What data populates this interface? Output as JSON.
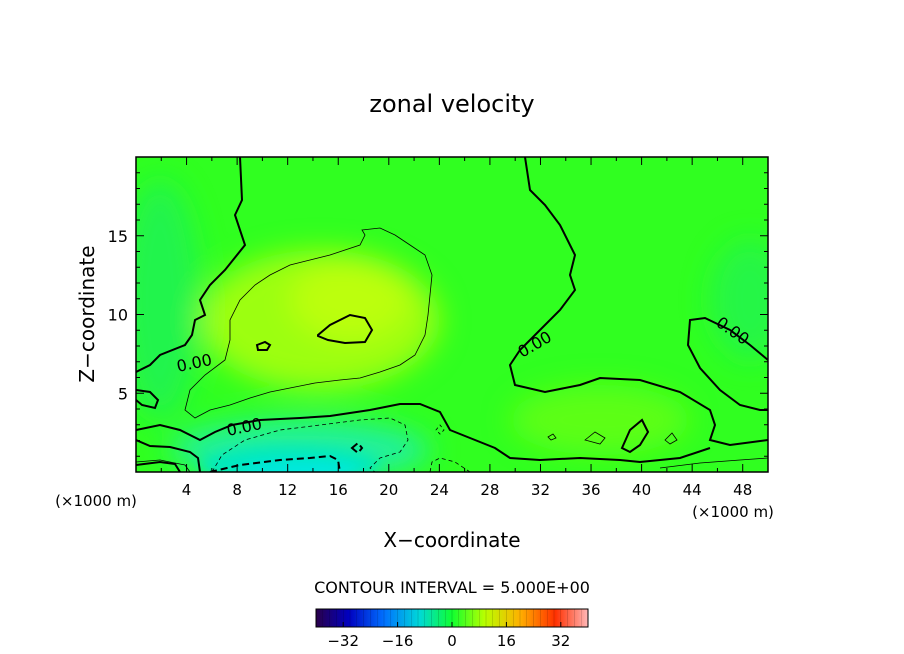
{
  "chart_data": {
    "type": "heatmap",
    "title": "zonal velocity",
    "xlabel": "X−coordinate",
    "ylabel": "Z−coordinate",
    "x_unit_left": "(×1000 m)",
    "x_unit_right": "(×1000 m)",
    "xlim": [
      0,
      50
    ],
    "ylim": [
      0,
      20
    ],
    "x_ticks": [
      4,
      8,
      12,
      16,
      20,
      24,
      28,
      32,
      36,
      40,
      44,
      48
    ],
    "y_ticks": [
      5,
      10,
      15
    ],
    "contour_interval_text": "CONTOUR INTERVAL = 5.000E+00",
    "contour_labels": [
      "0.00",
      "0.00",
      "0.00",
      "0.00"
    ],
    "colorbar": {
      "range": [
        -40,
        40
      ],
      "tick_labels": [
        "−32",
        "−16",
        "0",
        "16",
        "32"
      ],
      "tick_values": [
        -32,
        -16,
        0,
        16,
        32
      ]
    },
    "velocity_field_estimate": {
      "x": [
        0,
        8,
        16,
        24,
        32,
        40,
        50
      ],
      "z": [
        0,
        5,
        10,
        15,
        20
      ],
      "values": [
        [
          -2,
          -8,
          -14,
          -9,
          -3,
          -1,
          3
        ],
        [
          1,
          3,
          4,
          1,
          -2,
          2,
          1
        ],
        [
          -1,
          5,
          8,
          4,
          -1,
          -1,
          -2
        ],
        [
          -2,
          2,
          4,
          1,
          0,
          -1,
          -1
        ],
        [
          -1,
          1,
          2,
          1,
          0,
          0,
          0
        ]
      ]
    }
  }
}
